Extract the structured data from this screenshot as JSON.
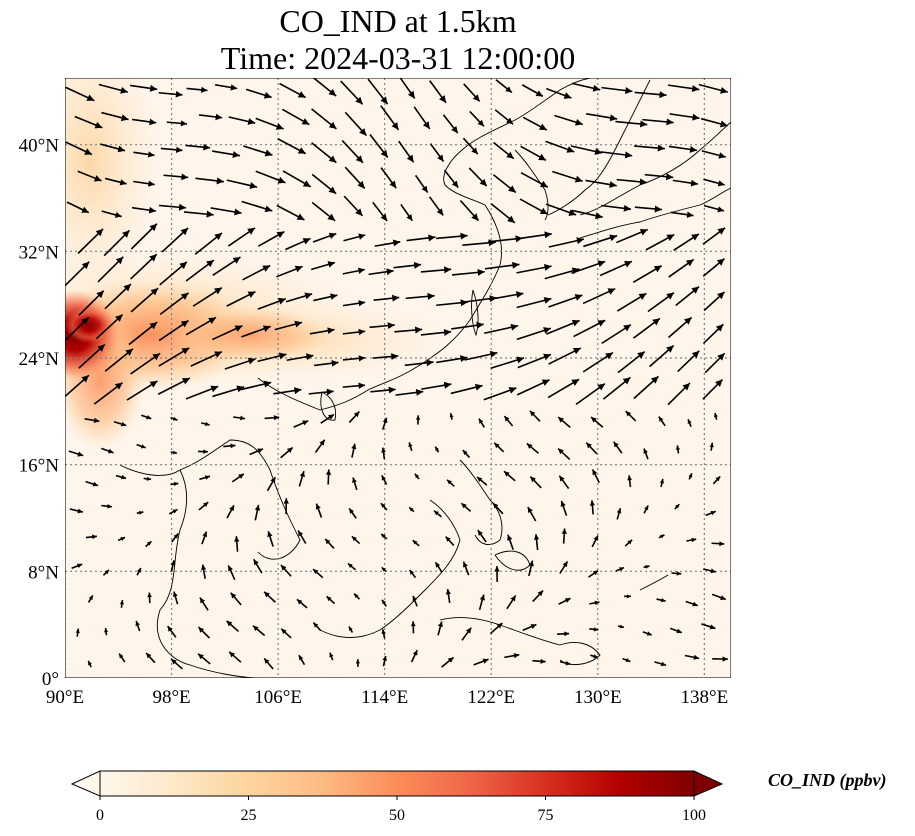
{
  "title": {
    "line1": "CO_IND at 1.5km",
    "line2": "Time: 2024-03-31 12:00:00"
  },
  "map": {
    "lon_range": [
      90,
      140
    ],
    "lat_range": [
      0,
      45
    ],
    "lon_ticks": [
      {
        "value": 90,
        "label": "90°E"
      },
      {
        "value": 98,
        "label": "98°E"
      },
      {
        "value": 106,
        "label": "106°E"
      },
      {
        "value": 114,
        "label": "114°E"
      },
      {
        "value": 122,
        "label": "122°E"
      },
      {
        "value": 130,
        "label": "130°E"
      },
      {
        "value": 138,
        "label": "138°E"
      }
    ],
    "lat_ticks": [
      {
        "value": 0,
        "label": "0°"
      },
      {
        "value": 8,
        "label": "8°N"
      },
      {
        "value": 16,
        "label": "16°N"
      },
      {
        "value": 24,
        "label": "24°N"
      },
      {
        "value": 32,
        "label": "32°N"
      },
      {
        "value": 40,
        "label": "40°N"
      }
    ],
    "gridlines": true,
    "colors": {
      "background": "#fff5eb",
      "coastline": "#000000",
      "gridline": "#7f7f7f",
      "vector": "#000000"
    }
  },
  "colorbar": {
    "title": "CO_IND (ppbv)",
    "min": 0,
    "max": 100,
    "extend": "both",
    "cmap": "OrRd",
    "ticks": [
      {
        "value": 0,
        "label": "0"
      },
      {
        "value": 25,
        "label": "25"
      },
      {
        "value": 50,
        "label": "50"
      },
      {
        "value": 75,
        "label": "75"
      },
      {
        "value": 100,
        "label": "100"
      }
    ],
    "stops": [
      "#fff7ec",
      "#fee8c8",
      "#fdd49e",
      "#fdbb84",
      "#fc8d59",
      "#ef6548",
      "#d7301f",
      "#b30000",
      "#7f0000"
    ]
  }
}
